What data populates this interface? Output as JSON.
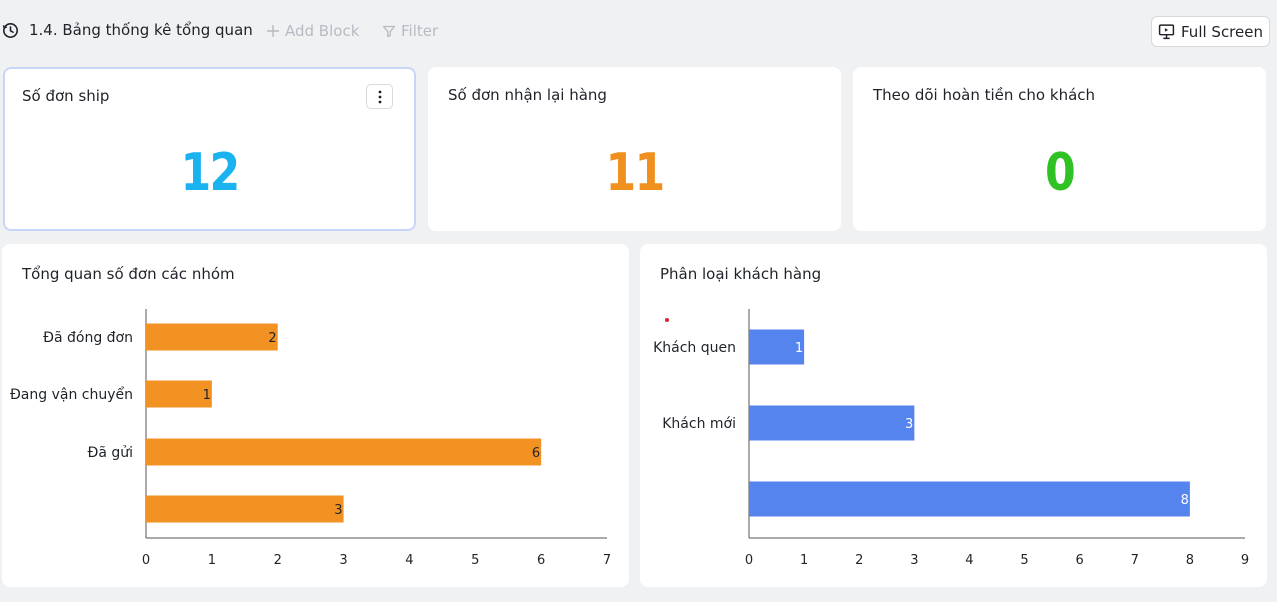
{
  "toolbar": {
    "title": "1.4. Bảng thống kê tổng quan",
    "add_block": "Add Block",
    "filter": "Filter",
    "full_screen": "Full Screen"
  },
  "stats": [
    {
      "label": "Số đơn ship",
      "value": "12",
      "color": "#1ab3f0"
    },
    {
      "label": "Số đơn nhận lại hàng",
      "value": "11",
      "color": "#f0901e"
    },
    {
      "label": "Theo dõi hoàn tiền cho khách",
      "value": "0",
      "color": "#30c224"
    }
  ],
  "colors": {
    "orange_bar": "#f29222",
    "blue_bar": "#5684ee"
  },
  "chart_data": [
    {
      "type": "bar",
      "orientation": "horizontal",
      "title": "Tổng quan số đơn các nhóm",
      "categories": [
        "Đã đóng đơn",
        "Đang vận chuyển",
        "Đã gửi",
        ""
      ],
      "values": [
        2,
        1,
        6,
        3
      ],
      "xlim": [
        0,
        7
      ],
      "xticks": [
        0,
        1,
        2,
        3,
        4,
        5,
        6,
        7
      ],
      "color": "#f29222",
      "grid": false
    },
    {
      "type": "bar",
      "orientation": "horizontal",
      "title": "Phân loại khách hàng",
      "categories": [
        "Khách quen",
        "Khách mới",
        ""
      ],
      "values": [
        1,
        3,
        8
      ],
      "xlim": [
        0,
        9
      ],
      "xticks": [
        0,
        1,
        2,
        3,
        4,
        5,
        6,
        7,
        8,
        9
      ],
      "color": "#5684ee",
      "grid": false
    }
  ]
}
